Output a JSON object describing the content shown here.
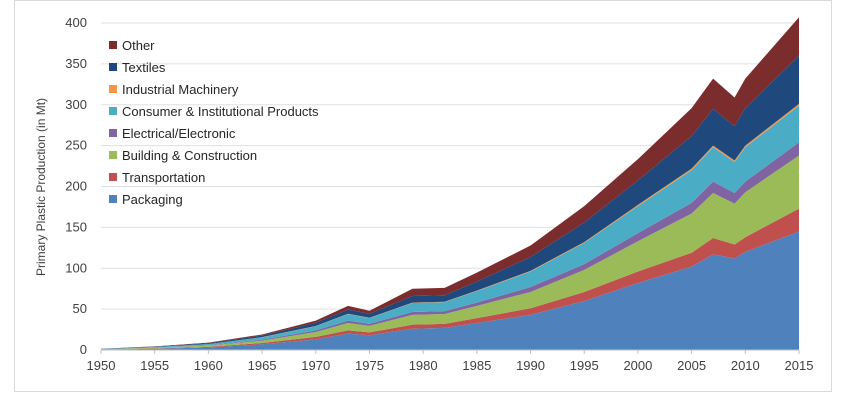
{
  "chart_data": {
    "type": "area",
    "stacked": true,
    "title": "",
    "xlabel": "",
    "ylabel": "Primary Plastic Production (in Mt)",
    "xlim": [
      1950,
      2015
    ],
    "ylim": [
      0,
      400
    ],
    "x_ticks": [
      1950,
      1955,
      1960,
      1965,
      1970,
      1975,
      1980,
      1985,
      1990,
      1995,
      2000,
      2005,
      2010,
      2015
    ],
    "y_ticks": [
      0,
      50,
      100,
      150,
      200,
      250,
      300,
      350,
      400
    ],
    "grid": "horizontal",
    "legend_position": "top-left",
    "x": [
      1950,
      1955,
      1960,
      1965,
      1970,
      1973,
      1975,
      1979,
      1982,
      1985,
      1990,
      1995,
      2000,
      2005,
      2007,
      2009,
      2010,
      2015
    ],
    "series": [
      {
        "name": "Packaging",
        "color": "#4F81BD",
        "values": [
          0.5,
          1.5,
          3,
          7,
          13,
          20,
          18,
          26,
          27,
          33,
          43,
          60,
          82,
          102,
          117,
          112,
          120,
          145
        ]
      },
      {
        "name": "Transportation",
        "color": "#C0504D",
        "values": [
          0.1,
          0.4,
          0.8,
          1.5,
          3,
          4,
          3.5,
          5,
          5,
          6,
          8,
          11,
          14,
          17,
          20,
          17,
          18,
          28
        ]
      },
      {
        "name": "Building & Construction",
        "color": "#9BBB59",
        "values": [
          0.3,
          0.8,
          1.5,
          3,
          6,
          9,
          8,
          12,
          12,
          15,
          20,
          27,
          37,
          48,
          55,
          50,
          55,
          65
        ]
      },
      {
        "name": "Electrical/Electronic",
        "color": "#8064A2",
        "values": [
          0.1,
          0.2,
          0.5,
          1,
          2,
          3,
          2.5,
          3.5,
          3.5,
          4,
          6,
          7,
          10,
          13,
          14,
          13,
          13,
          16
        ]
      },
      {
        "name": "Consumer & Institutional Products",
        "color": "#4BACC6",
        "values": [
          0.3,
          0.7,
          1.5,
          3,
          5,
          8,
          7,
          11,
          11,
          14,
          19,
          26,
          33,
          40,
          42,
          38,
          42,
          45
        ]
      },
      {
        "name": "Industrial Machinery",
        "color": "#F79646",
        "values": [
          0,
          0.1,
          0.1,
          0.2,
          0.3,
          0.4,
          0.4,
          0.5,
          0.5,
          0.6,
          0.8,
          1,
          1.5,
          1.8,
          2,
          1.8,
          2,
          2
        ]
      },
      {
        "name": "Textiles",
        "color": "#1F497D",
        "values": [
          0.2,
          0.5,
          1,
          2,
          4,
          5,
          5,
          8,
          8,
          11,
          17,
          24,
          30,
          40,
          45,
          42,
          46,
          59
        ]
      },
      {
        "name": "Other",
        "color": "#7B2C2C",
        "values": [
          0.1,
          0.3,
          0.6,
          1.3,
          2.7,
          4.6,
          3.6,
          9,
          9,
          11,
          14,
          20,
          26,
          34,
          37,
          35,
          36,
          47
        ]
      }
    ],
    "legend_order": [
      "Other",
      "Textiles",
      "Industrial Machinery",
      "Consumer & Institutional Products",
      "Electrical/Electronic",
      "Building & Construction",
      "Transportation",
      "Packaging"
    ]
  }
}
